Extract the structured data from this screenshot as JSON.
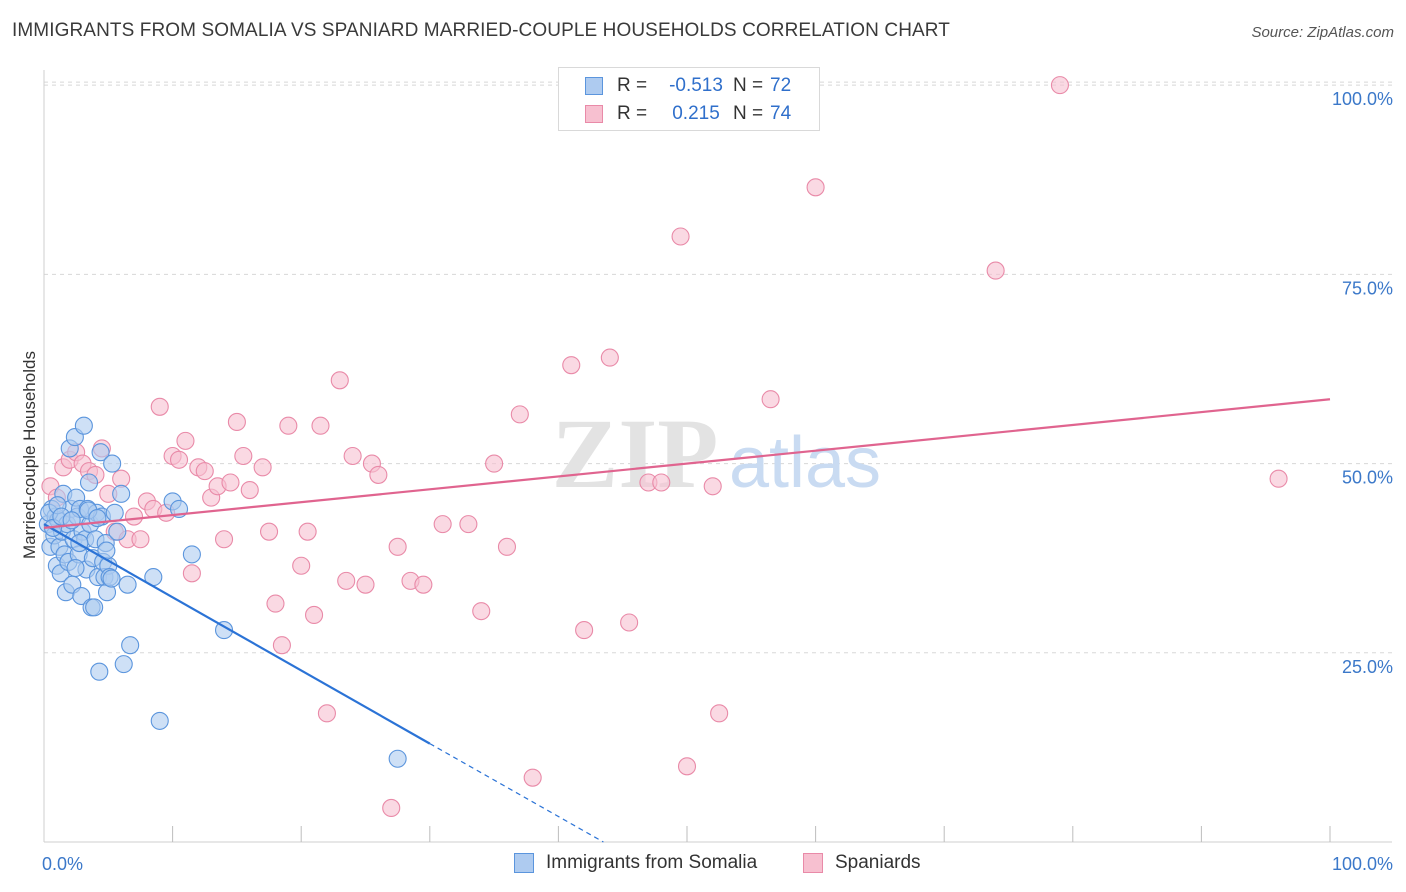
{
  "title": "IMMIGRANTS FROM SOMALIA VS SPANIARD MARRIED-COUPLE HOUSEHOLDS CORRELATION CHART",
  "source": "Source: ZipAtlas.com",
  "watermark": {
    "zip": "ZIP",
    "atlas": "atlas"
  },
  "colors": {
    "blue_fill": "#aecbf0",
    "blue_stroke": "#5b95dd",
    "blue_line": "#2b73d6",
    "pink_fill": "#f7c0d0",
    "pink_stroke": "#e98aa8",
    "pink_line": "#e0648f",
    "tick_label": "#3b78c9",
    "grid": "#d8d8d8"
  },
  "legend_top": {
    "rows": [
      {
        "series": "Immigrants from Somalia",
        "r_label": "R =",
        "r_value": "-0.513",
        "n_label": "N =",
        "n_value": "72"
      },
      {
        "series": "Spaniards",
        "r_label": "R =",
        "r_value": " 0.215",
        "n_label": "N =",
        "n_value": "74"
      }
    ]
  },
  "chart_data": {
    "type": "scatter",
    "title": "IMMIGRANTS FROM SOMALIA VS SPANIARD MARRIED-COUPLE HOUSEHOLDS CORRELATION CHART",
    "xlabel": "",
    "ylabel": "Married-couple Households",
    "xlim": [
      0,
      100
    ],
    "ylim": [
      0,
      102
    ],
    "x_tick_labels": [
      {
        "value": 0,
        "label": "0.0%"
      },
      {
        "value": 100,
        "label": "100.0%"
      }
    ],
    "y_tick_labels": [
      {
        "value": 25,
        "label": "25.0%"
      },
      {
        "value": 50,
        "label": "50.0%"
      },
      {
        "value": 75,
        "label": "75.0%"
      },
      {
        "value": 100,
        "label": "100.0%"
      }
    ],
    "series": [
      {
        "name": "Immigrants from Somalia",
        "color": "blue",
        "trend": {
          "x0": 0,
          "y0": 42.0,
          "x1": 30,
          "y1": 13.0,
          "dash_to_x": 43.5,
          "dash_to_y": 0
        },
        "points": [
          [
            0.3,
            42.0
          ],
          [
            0.5,
            39.0
          ],
          [
            0.6,
            44.0
          ],
          [
            0.8,
            40.5
          ],
          [
            0.9,
            43.0
          ],
          [
            1.0,
            36.5
          ],
          [
            1.1,
            42.5
          ],
          [
            1.2,
            39.0
          ],
          [
            1.3,
            35.5
          ],
          [
            1.4,
            41.0
          ],
          [
            1.5,
            46.0
          ],
          [
            1.6,
            38.0
          ],
          [
            1.7,
            33.0
          ],
          [
            1.8,
            42.0
          ],
          [
            1.9,
            37.0
          ],
          [
            2.0,
            52.0
          ],
          [
            2.1,
            44.0
          ],
          [
            2.2,
            34.0
          ],
          [
            2.3,
            40.0
          ],
          [
            2.4,
            53.5
          ],
          [
            2.5,
            45.5
          ],
          [
            2.6,
            43.0
          ],
          [
            2.7,
            38.0
          ],
          [
            2.8,
            44.0
          ],
          [
            2.9,
            32.5
          ],
          [
            3.0,
            41.0
          ],
          [
            3.1,
            55.0
          ],
          [
            3.2,
            40.0
          ],
          [
            3.3,
            36.0
          ],
          [
            3.4,
            44.0
          ],
          [
            3.5,
            47.5
          ],
          [
            3.6,
            42.0
          ],
          [
            3.7,
            31.0
          ],
          [
            3.8,
            37.5
          ],
          [
            3.9,
            31.0
          ],
          [
            4.0,
            40.0
          ],
          [
            4.1,
            43.5
          ],
          [
            4.2,
            35.0
          ],
          [
            4.3,
            22.5
          ],
          [
            4.4,
            51.5
          ],
          [
            4.5,
            43.0
          ],
          [
            4.6,
            37.0
          ],
          [
            4.7,
            35.0
          ],
          [
            4.8,
            39.5
          ],
          [
            4.9,
            33.0
          ],
          [
            5.0,
            36.5
          ],
          [
            5.1,
            35.0
          ],
          [
            5.3,
            50.0
          ],
          [
            5.5,
            43.5
          ],
          [
            5.7,
            41.0
          ],
          [
            6.0,
            46.0
          ],
          [
            6.2,
            23.5
          ],
          [
            6.5,
            34.0
          ],
          [
            6.7,
            26.0
          ],
          [
            8.5,
            35.0
          ],
          [
            9.0,
            16.0
          ],
          [
            10.0,
            45.0
          ],
          [
            10.5,
            44.0
          ],
          [
            11.5,
            38.0
          ],
          [
            14.0,
            28.0
          ],
          [
            27.5,
            11.0
          ],
          [
            0.4,
            43.5
          ],
          [
            0.7,
            41.5
          ],
          [
            1.05,
            44.5
          ],
          [
            1.35,
            43.0
          ],
          [
            2.15,
            42.5
          ],
          [
            2.75,
            39.5
          ],
          [
            3.45,
            43.8
          ],
          [
            4.15,
            42.8
          ],
          [
            4.85,
            38.5
          ],
          [
            5.25,
            34.8
          ],
          [
            2.45,
            36.2
          ]
        ]
      },
      {
        "name": "Spaniards",
        "color": "pink",
        "trend": {
          "x0": 0,
          "y0": 41.5,
          "x1": 100,
          "y1": 58.5
        },
        "points": [
          [
            0.5,
            47.0
          ],
          [
            1.0,
            45.5
          ],
          [
            1.5,
            49.5
          ],
          [
            2.0,
            50.5
          ],
          [
            2.5,
            51.5
          ],
          [
            3.0,
            50.0
          ],
          [
            3.5,
            49.0
          ],
          [
            4.0,
            48.5
          ],
          [
            4.5,
            52.0
          ],
          [
            5.0,
            46.0
          ],
          [
            5.5,
            41.0
          ],
          [
            6.0,
            48.0
          ],
          [
            6.5,
            40.0
          ],
          [
            7.0,
            43.0
          ],
          [
            7.5,
            40.0
          ],
          [
            8.0,
            45.0
          ],
          [
            8.5,
            44.0
          ],
          [
            9.0,
            57.5
          ],
          [
            9.5,
            43.5
          ],
          [
            10.0,
            51.0
          ],
          [
            10.5,
            50.5
          ],
          [
            11.0,
            53.0
          ],
          [
            11.5,
            35.5
          ],
          [
            12.0,
            49.5
          ],
          [
            12.5,
            49.0
          ],
          [
            13.0,
            45.5
          ],
          [
            13.5,
            47.0
          ],
          [
            14.0,
            40.0
          ],
          [
            14.5,
            47.5
          ],
          [
            15.0,
            55.5
          ],
          [
            15.5,
            51.0
          ],
          [
            16.0,
            46.5
          ],
          [
            17.0,
            49.5
          ],
          [
            17.5,
            41.0
          ],
          [
            18.0,
            31.5
          ],
          [
            18.5,
            26.0
          ],
          [
            19.0,
            55.0
          ],
          [
            20.0,
            36.5
          ],
          [
            20.5,
            41.0
          ],
          [
            21.0,
            30.0
          ],
          [
            21.5,
            55.0
          ],
          [
            22.0,
            17.0
          ],
          [
            23.0,
            61.0
          ],
          [
            23.5,
            34.5
          ],
          [
            24.0,
            51.0
          ],
          [
            25.0,
            34.0
          ],
          [
            25.5,
            50.0
          ],
          [
            26.0,
            48.5
          ],
          [
            27.0,
            4.5
          ],
          [
            27.5,
            39.0
          ],
          [
            28.5,
            34.5
          ],
          [
            29.5,
            34.0
          ],
          [
            31.0,
            42.0
          ],
          [
            33.0,
            42.0
          ],
          [
            34.0,
            30.5
          ],
          [
            35.0,
            50.0
          ],
          [
            36.0,
            39.0
          ],
          [
            37.0,
            56.5
          ],
          [
            38.0,
            8.5
          ],
          [
            41.0,
            63.0
          ],
          [
            42.0,
            28.0
          ],
          [
            44.0,
            64.0
          ],
          [
            45.5,
            29.0
          ],
          [
            47.0,
            47.5
          ],
          [
            48.0,
            47.5
          ],
          [
            49.5,
            80.0
          ],
          [
            50.0,
            10.0
          ],
          [
            52.0,
            47.0
          ],
          [
            52.5,
            17.0
          ],
          [
            56.5,
            58.5
          ],
          [
            60.0,
            86.5
          ],
          [
            74.0,
            75.5
          ],
          [
            79.0,
            100.0
          ],
          [
            96.0,
            48.0
          ]
        ]
      }
    ]
  },
  "bottom_legend": [
    {
      "label": "Immigrants from Somalia"
    },
    {
      "label": "Spaniards"
    }
  ]
}
